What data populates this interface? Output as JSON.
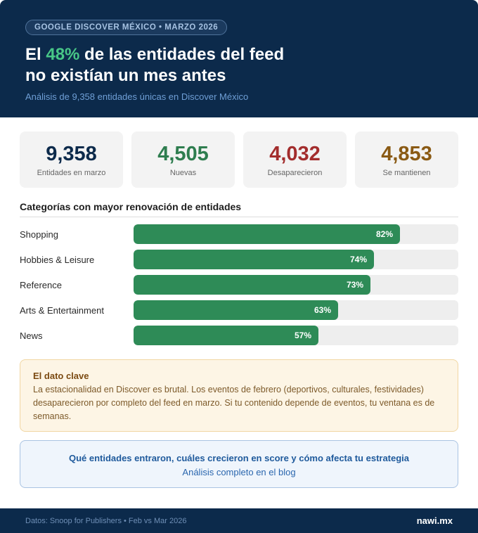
{
  "header": {
    "tag": "GOOGLE DISCOVER MÉXICO • MARZO 2026",
    "headline_pre": "El ",
    "headline_highlight": "48%",
    "headline_line1_post": " de las entidades del feed",
    "headline_line2": "no existían un mes antes",
    "subtitle": "Análisis de 9,358 entidades únicas en Discover México",
    "highlight_color": "#48c787"
  },
  "stats": [
    {
      "value": "9,358",
      "label": "Entidades en marzo",
      "color": "#0c2a4b"
    },
    {
      "value": "4,505",
      "label": "Nuevas",
      "color": "#2e7d4f"
    },
    {
      "value": "4,032",
      "label": "Desaparecieron",
      "color": "#a32d2d"
    },
    {
      "value": "4,853",
      "label": "Se mantienen",
      "color": "#8a5a14"
    }
  ],
  "section": {
    "title": "Categorías con mayor renovación de entidades"
  },
  "chart_data": {
    "type": "bar",
    "orientation": "horizontal",
    "title": "Categorías con mayor renovación de entidades",
    "categories": [
      "Shopping",
      "Hobbies & Leisure",
      "Reference",
      "Arts & Entertainment",
      "News"
    ],
    "values": [
      82,
      74,
      73,
      63,
      57
    ],
    "value_labels": [
      "82%",
      "74%",
      "73%",
      "63%",
      "57%"
    ],
    "xlim": [
      0,
      100
    ],
    "unit": "%",
    "bar_color": "#2e8b57",
    "track_color": "#eeeeee",
    "grid": false
  },
  "key_fact": {
    "title": "El dato clave",
    "body": "La estacionalidad en Discover es brutal. Los eventos de febrero (deportivos, culturales, festividades) desaparecieron por completo del feed en marzo. Si tu contenido depende de eventos, tu ventana es de semanas."
  },
  "cta": {
    "title": "Qué entidades entraron, cuáles crecieron en score y cómo afecta tu estrategia",
    "link": "Análisis completo en el blog"
  },
  "footer": {
    "source": "Datos: Snoop for Publishers • Feb vs Mar 2026",
    "brand": "nawi.mx"
  }
}
